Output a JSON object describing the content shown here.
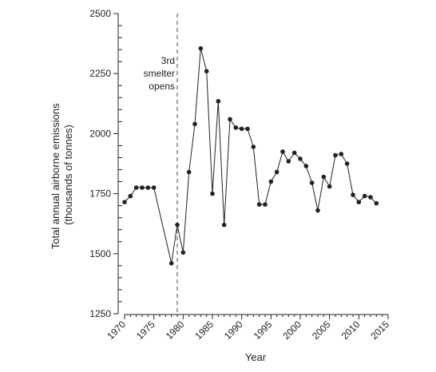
{
  "chart_data": {
    "type": "line",
    "xlabel": "Year",
    "ylabel_lines": [
      "Total annual airborne emissions",
      "(thousands of tonnes)"
    ],
    "xlim": [
      1970,
      2015
    ],
    "ylim": [
      1250,
      2500
    ],
    "x_ticks": [
      1970,
      1975,
      1980,
      1985,
      1990,
      1995,
      2000,
      2005,
      2010,
      2015
    ],
    "y_ticks": [
      1250,
      1500,
      1750,
      2000,
      2250,
      2500
    ],
    "x_tick_labels": [
      "1970",
      "1975",
      "1980",
      "1985",
      "1990",
      "1995",
      "2000",
      "2005",
      "2010",
      "2015"
    ],
    "y_tick_labels": [
      "1250",
      "1500",
      "1750",
      "2000",
      "2250",
      "2500"
    ],
    "grid": false,
    "annotation": {
      "x": 1979,
      "lines": [
        "3rd",
        "smelter",
        "opens"
      ]
    },
    "series": [
      {
        "color": "#222222",
        "marker": "circle",
        "x": [
          1970,
          1971,
          1972,
          1973,
          1974,
          1975,
          1978,
          1979,
          1980,
          1981,
          1982,
          1983,
          1984,
          1985,
          1986,
          1987,
          1988,
          1989,
          1990,
          1991,
          1992,
          1993,
          1994,
          1995,
          1996,
          1997,
          1998,
          1999,
          2000,
          2001,
          2002,
          2003,
          2004,
          2005,
          2006,
          2007,
          2008,
          2009,
          2010,
          2011,
          2012,
          2013
        ],
        "y": [
          1715,
          1740,
          1775,
          1775,
          1775,
          1775,
          1460,
          1620,
          1505,
          1840,
          2040,
          2355,
          2260,
          1750,
          2135,
          1620,
          2060,
          2025,
          2020,
          2020,
          1945,
          1705,
          1705,
          1800,
          1840,
          1925,
          1885,
          1920,
          1895,
          1865,
          1795,
          1680,
          1820,
          1780,
          1910,
          1915,
          1875,
          1745,
          1715,
          1740,
          1735,
          1710
        ]
      }
    ]
  }
}
